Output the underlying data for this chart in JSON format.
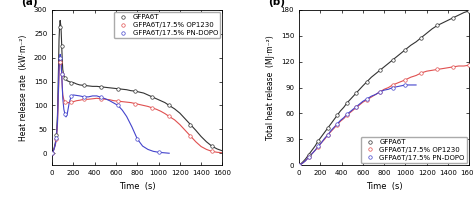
{
  "panel_a": {
    "title": "(a)",
    "xlabel": "Time  (s)",
    "ylabel": "Heat release rate  (kW·m⁻²)",
    "xlim": [
      0,
      1600
    ],
    "ylim": [
      -25,
      300
    ],
    "yticks": [
      0,
      50,
      100,
      150,
      200,
      250,
      300
    ],
    "xticks": [
      0,
      200,
      400,
      600,
      800,
      1000,
      1200,
      1400,
      1600
    ],
    "series": [
      {
        "label": "GFPA6T",
        "color": "#333333",
        "marker": "o",
        "markerfacecolor": "white",
        "markersize": 2.5,
        "linewidth": 0.8,
        "markevery": 4,
        "points_x": [
          0,
          10,
          20,
          30,
          40,
          50,
          60,
          65,
          70,
          75,
          80,
          85,
          90,
          95,
          100,
          110,
          120,
          130,
          140,
          160,
          180,
          200,
          230,
          260,
          300,
          340,
          380,
          420,
          460,
          500,
          540,
          580,
          620,
          660,
          700,
          740,
          780,
          820,
          860,
          900,
          940,
          980,
          1020,
          1060,
          1100,
          1150,
          1200,
          1250,
          1300,
          1350,
          1400,
          1450,
          1500,
          1550,
          1600
        ],
        "points_y": [
          0,
          5,
          12,
          22,
          38,
          80,
          180,
          240,
          265,
          278,
          270,
          255,
          225,
          195,
          175,
          162,
          158,
          155,
          152,
          150,
          148,
          148,
          145,
          143,
          142,
          141,
          140,
          140,
          139,
          138,
          137,
          136,
          135,
          134,
          133,
          131,
          130,
          128,
          126,
          122,
          118,
          114,
          110,
          106,
          100,
          93,
          84,
          72,
          60,
          48,
          35,
          24,
          15,
          9,
          5
        ]
      },
      {
        "label": "GFPA6T/17.5% OP1230",
        "color": "#e05050",
        "marker": "o",
        "markerfacecolor": "white",
        "markersize": 2.5,
        "linewidth": 0.8,
        "markevery": 4,
        "points_x": [
          0,
          10,
          20,
          30,
          40,
          50,
          60,
          65,
          70,
          75,
          80,
          85,
          90,
          95,
          100,
          110,
          120,
          130,
          140,
          160,
          180,
          200,
          230,
          260,
          300,
          340,
          380,
          420,
          460,
          500,
          540,
          580,
          620,
          660,
          700,
          740,
          780,
          820,
          860,
          900,
          940,
          980,
          1020,
          1060,
          1100,
          1150,
          1200,
          1250,
          1300,
          1350,
          1400,
          1450,
          1500,
          1550,
          1600
        ],
        "points_y": [
          0,
          4,
          10,
          18,
          30,
          60,
          130,
          170,
          192,
          200,
          195,
          185,
          165,
          140,
          122,
          112,
          108,
          107,
          106,
          106,
          107,
          108,
          110,
          111,
          113,
          113,
          114,
          115,
          114,
          113,
          112,
          110,
          109,
          108,
          107,
          106,
          104,
          102,
          100,
          98,
          95,
          92,
          88,
          83,
          77,
          70,
          60,
          48,
          36,
          24,
          14,
          8,
          4,
          2,
          1
        ]
      },
      {
        "label": "GFPA6T/17.5% PN-DOPO",
        "color": "#4444cc",
        "marker": "o",
        "markerfacecolor": "white",
        "markersize": 2.5,
        "linewidth": 0.8,
        "markevery": 4,
        "points_x": [
          0,
          10,
          20,
          30,
          40,
          50,
          60,
          65,
          70,
          75,
          80,
          85,
          90,
          95,
          100,
          110,
          120,
          130,
          140,
          160,
          180,
          200,
          230,
          260,
          300,
          340,
          380,
          420,
          460,
          500,
          540,
          580,
          620,
          660,
          700,
          750,
          800,
          850,
          900,
          950,
          1000,
          1050,
          1100
        ],
        "points_y": [
          0,
          4,
          10,
          18,
          32,
          65,
          140,
          180,
          200,
          207,
          200,
          188,
          165,
          140,
          115,
          92,
          82,
          76,
          80,
          105,
          120,
          122,
          121,
          120,
          118,
          118,
          120,
          120,
          117,
          114,
          110,
          105,
          100,
          90,
          77,
          55,
          30,
          15,
          8,
          4,
          2,
          1,
          0
        ]
      }
    ],
    "legend_loc": "upper right",
    "legend_fontsize": 5.0
  },
  "panel_b": {
    "title": "(b)",
    "xlabel": "Time  (s)",
    "ylabel": "Total heat release  (MJ·m⁻²)",
    "xlim": [
      0,
      1600
    ],
    "ylim": [
      0,
      180
    ],
    "yticks": [
      0,
      30,
      60,
      90,
      120,
      150,
      180
    ],
    "xticks": [
      0,
      200,
      400,
      600,
      800,
      1000,
      1200,
      1400,
      1600
    ],
    "series": [
      {
        "label": "GFPA6T",
        "color": "#333333",
        "marker": "o",
        "markerfacecolor": "white",
        "markersize": 2.5,
        "linewidth": 0.8,
        "markevery": 3,
        "points_x": [
          0,
          30,
          60,
          90,
          120,
          150,
          180,
          210,
          240,
          270,
          300,
          330,
          360,
          390,
          420,
          450,
          480,
          510,
          540,
          570,
          600,
          640,
          680,
          720,
          760,
          800,
          840,
          880,
          920,
          960,
          1000,
          1050,
          1100,
          1150,
          1200,
          1250,
          1300,
          1350,
          1400,
          1450,
          1500,
          1550,
          1600
        ],
        "points_y": [
          0,
          3,
          7,
          12,
          17,
          22,
          28,
          33,
          38,
          43,
          48,
          53,
          58,
          63,
          67,
          72,
          76,
          80,
          84,
          88,
          92,
          97,
          102,
          106,
          110,
          114,
          118,
          122,
          126,
          130,
          134,
          139,
          143,
          148,
          153,
          158,
          162,
          165,
          168,
          171,
          174,
          177,
          179
        ]
      },
      {
        "label": "GFPA6T/17.5% OP1230",
        "color": "#e05050",
        "marker": "o",
        "markerfacecolor": "white",
        "markersize": 2.5,
        "linewidth": 0.8,
        "markevery": 3,
        "points_x": [
          0,
          30,
          60,
          90,
          120,
          150,
          180,
          210,
          240,
          270,
          300,
          330,
          360,
          390,
          420,
          450,
          480,
          510,
          540,
          570,
          600,
          640,
          680,
          720,
          760,
          800,
          840,
          880,
          920,
          960,
          1000,
          1050,
          1100,
          1150,
          1200,
          1250,
          1300,
          1350,
          1400,
          1450,
          1500,
          1550,
          1600
        ],
        "points_y": [
          0,
          2,
          5,
          9,
          13,
          17,
          21,
          26,
          30,
          35,
          39,
          43,
          47,
          51,
          54,
          58,
          61,
          64,
          67,
          70,
          73,
          76,
          79,
          82,
          85,
          88,
          90,
          93,
          95,
          97,
          99,
          102,
          104,
          107,
          109,
          110,
          111,
          112,
          113,
          114,
          115,
          115,
          116
        ]
      },
      {
        "label": "GFPA6T/17.5% PN-DOPO",
        "color": "#4444cc",
        "marker": "o",
        "markerfacecolor": "white",
        "markersize": 2.5,
        "linewidth": 0.8,
        "markevery": 3,
        "points_x": [
          0,
          30,
          60,
          90,
          120,
          150,
          180,
          210,
          240,
          270,
          300,
          330,
          360,
          390,
          420,
          450,
          480,
          510,
          540,
          570,
          600,
          640,
          680,
          720,
          760,
          800,
          840,
          880,
          920,
          960,
          1000,
          1050,
          1100
        ],
        "points_y": [
          0,
          2,
          5,
          9,
          13,
          17,
          22,
          26,
          31,
          35,
          40,
          44,
          48,
          52,
          55,
          59,
          62,
          65,
          68,
          71,
          74,
          77,
          80,
          82,
          85,
          87,
          88,
          90,
          91,
          92,
          93,
          93,
          93
        ]
      }
    ],
    "legend_loc": "lower right",
    "legend_fontsize": 5.0
  }
}
